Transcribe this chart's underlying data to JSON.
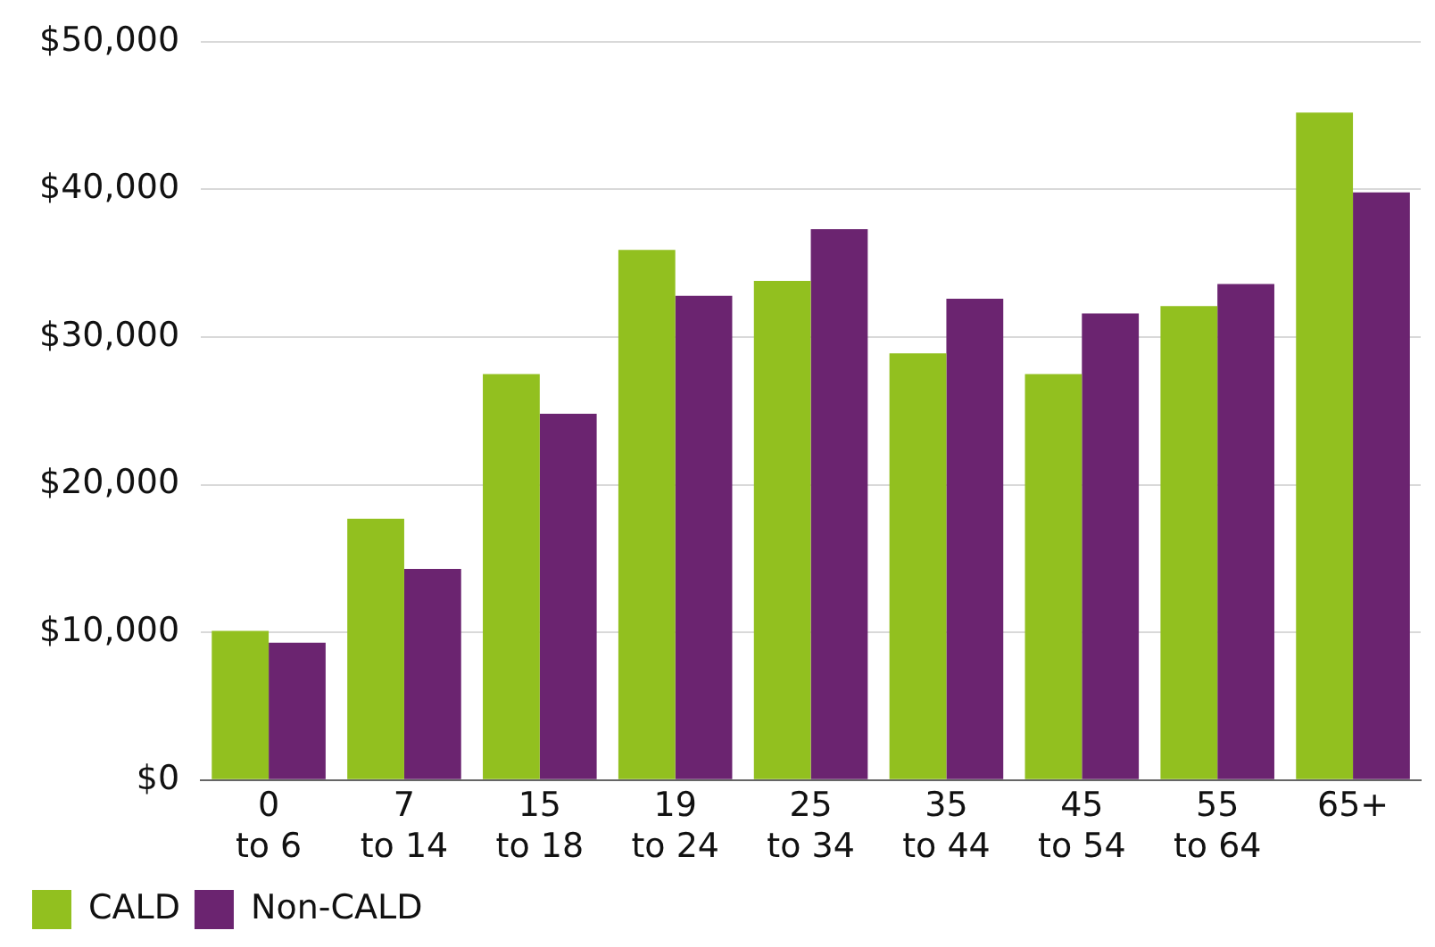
{
  "chart_data": {
    "type": "bar",
    "categories": [
      "0\nto 6",
      "7\nto 14",
      "15\nto 18",
      "19\nto 24",
      "25\nto 34",
      "35\nto 44",
      "45\nto 54",
      "55\nto 64",
      "65+"
    ],
    "series": [
      {
        "name": "CALD",
        "color": "#92c01f",
        "values": [
          10100,
          17700,
          27500,
          35900,
          33800,
          28900,
          27500,
          32100,
          45200
        ]
      },
      {
        "name": "Non-CALD",
        "color": "#6b2470",
        "values": [
          9300,
          14300,
          24800,
          32800,
          37300,
          32600,
          31600,
          33600,
          39800
        ]
      }
    ],
    "ylim": [
      0,
      50000
    ],
    "yticks": [
      {
        "value": 0,
        "label": "$0"
      },
      {
        "value": 10000,
        "label": "$10,000"
      },
      {
        "value": 20000,
        "label": "$20,000"
      },
      {
        "value": 30000,
        "label": "$30,000"
      },
      {
        "value": 40000,
        "label": "$40,000"
      },
      {
        "value": 50000,
        "label": "$50,000"
      }
    ],
    "grid": "y",
    "legend": "bottom left"
  }
}
